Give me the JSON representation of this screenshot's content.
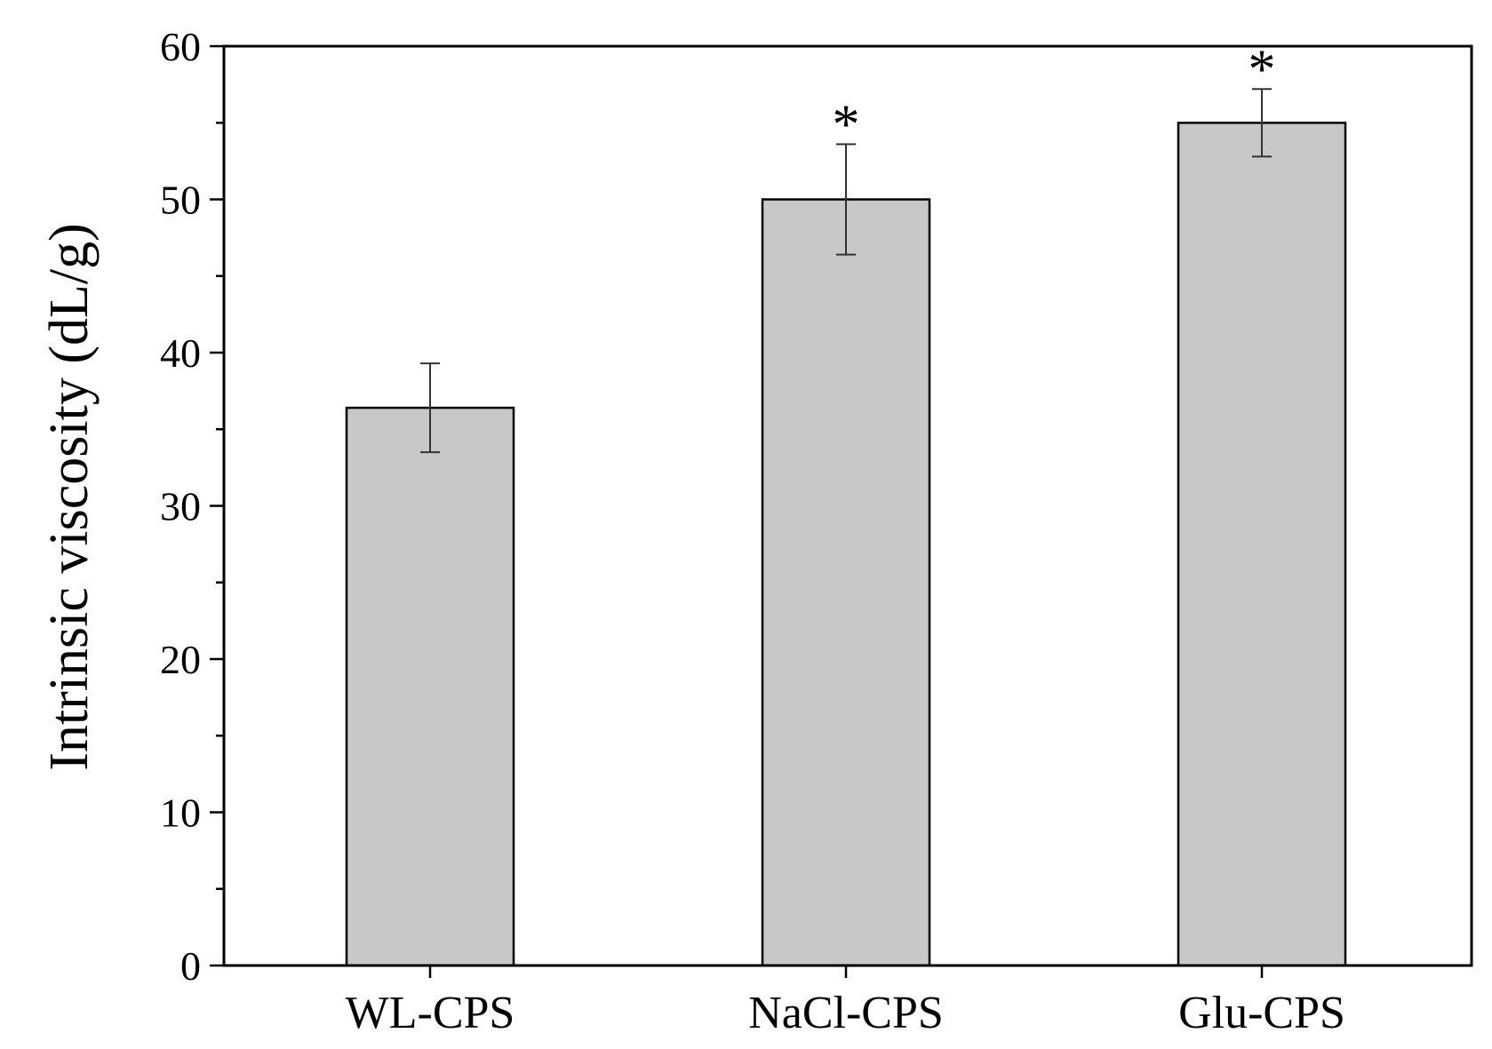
{
  "chart_data": {
    "type": "bar",
    "title": "",
    "xlabel": "",
    "ylabel": "Intrinsic viscosity (dL/g)",
    "ylim": [
      0,
      60
    ],
    "yticks": [
      0,
      10,
      20,
      30,
      40,
      50,
      60
    ],
    "categories": [
      "WL-CPS",
      "NaCl-CPS",
      "Glu-CPS"
    ],
    "values": [
      36.4,
      50.0,
      55.0
    ],
    "errors": [
      2.9,
      3.6,
      2.2
    ],
    "annotations": [
      "",
      "*",
      "*"
    ],
    "grid": false,
    "bar_color": "#c8c8c8",
    "bar_edge_color": "#000000",
    "error_bar_color": "#333333"
  }
}
